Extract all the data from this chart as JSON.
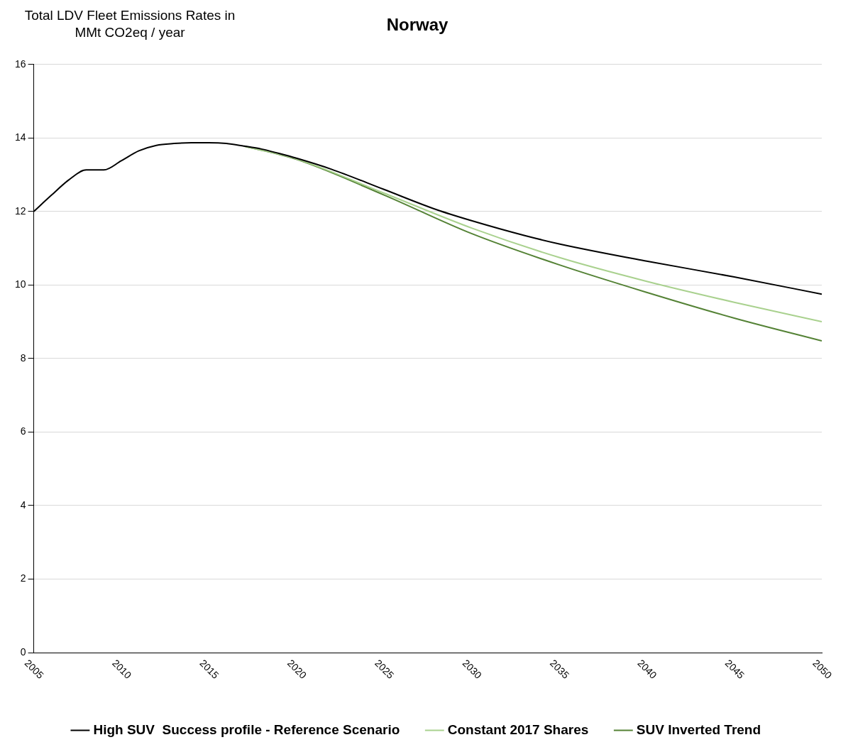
{
  "chart_data": {
    "type": "line",
    "title": "Norway",
    "ylabel": "Total LDV Fleet Emissions Rates in MMt CO2eq / year",
    "xlim": [
      2005,
      2050
    ],
    "xticks": [
      2005,
      2010,
      2015,
      2020,
      2025,
      2030,
      2035,
      2040,
      2045,
      2050
    ],
    "ylim": [
      0,
      16
    ],
    "yticks": [
      0,
      2,
      4,
      6,
      8,
      10,
      12,
      14,
      16
    ],
    "grid": "y",
    "legend": "bottom",
    "marker": "none",
    "line_style": "solid",
    "series": [
      {
        "name": "High SUV  Success profile - Reference Scenario",
        "color": "#000000",
        "x": [
          2005,
          2006,
          2007,
          2008,
          2009,
          2010,
          2011,
          2012,
          2013,
          2014,
          2015,
          2016,
          2017,
          2018,
          2019,
          2020,
          2022,
          2025,
          2028,
          2030,
          2033,
          2035,
          2040,
          2045,
          2050
        ],
        "values": [
          12.0,
          12.44,
          12.86,
          13.13,
          13.13,
          13.38,
          13.65,
          13.8,
          13.85,
          13.87,
          13.87,
          13.85,
          13.78,
          13.7,
          13.58,
          13.45,
          13.15,
          12.6,
          12.05,
          11.75,
          11.35,
          11.12,
          10.65,
          10.22,
          9.75
        ]
      },
      {
        "name": "Constant 2017 Shares",
        "color": "#a9d18e",
        "x": [
          2017,
          2020,
          2025,
          2030,
          2035,
          2040,
          2045,
          2050
        ],
        "values": [
          13.78,
          13.43,
          12.5,
          11.55,
          10.75,
          10.1,
          9.53,
          9.0
        ]
      },
      {
        "name": "SUV Inverted Trend",
        "color": "#548235",
        "x": [
          2017,
          2020,
          2025,
          2030,
          2035,
          2040,
          2045,
          2050
        ],
        "values": [
          13.78,
          13.42,
          12.45,
          11.4,
          10.55,
          9.8,
          9.1,
          8.48
        ]
      }
    ]
  }
}
